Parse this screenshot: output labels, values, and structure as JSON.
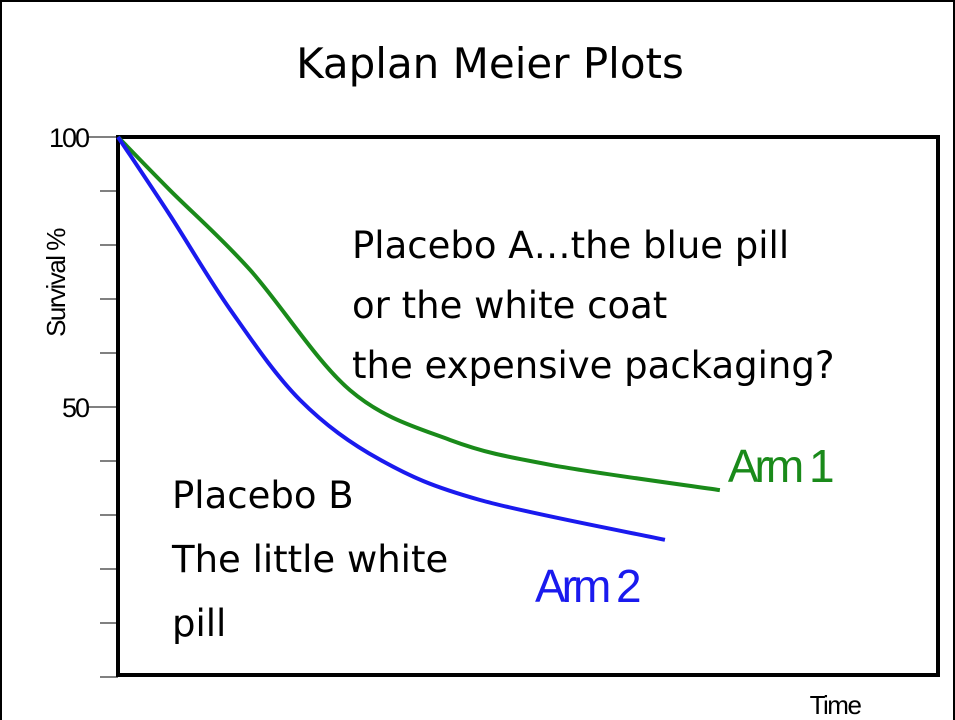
{
  "chart_data": {
    "type": "line",
    "title": "Kaplan Meier Plots",
    "ylabel": "Survival %",
    "xlabel": "Time",
    "xlim": [
      0,
      100
    ],
    "ylim": [
      0,
      100
    ],
    "yticks": [
      100,
      50
    ],
    "yminor_ticks": [
      0,
      10,
      20,
      30,
      40,
      50,
      60,
      70,
      80,
      90,
      100
    ],
    "series": [
      {
        "name": "Arm 1",
        "color": "#1a8a1a",
        "x": [
          0,
          6.3,
          16.1,
          28.3,
          40.5,
          52.7,
          73.4
        ],
        "values": [
          100,
          90.2,
          75.4,
          53.1,
          43.9,
          39.3,
          34.6
        ]
      },
      {
        "name": "Arm 2",
        "color": "#1a1aee",
        "x": [
          0,
          6.3,
          13.7,
          22.2,
          32,
          44.1,
          66.7
        ],
        "values": [
          100,
          85.6,
          68,
          51.3,
          40.2,
          32.8,
          25.4
        ]
      }
    ],
    "annotations": [
      "Placebo A…the blue pill",
      "or the white coat",
      "the expensive packaging?",
      "Placebo B",
      "The little white",
      "pill"
    ]
  }
}
